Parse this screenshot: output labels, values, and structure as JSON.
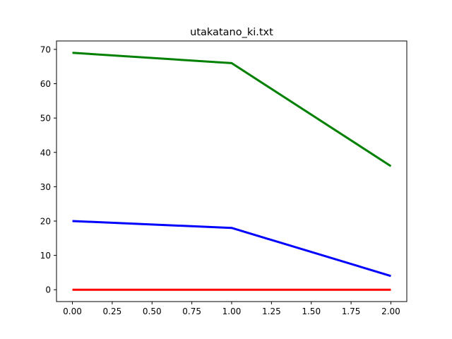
{
  "chart_data": {
    "type": "line",
    "title": "utakatano_ki.txt",
    "xlabel": "",
    "ylabel": "",
    "x": [
      0,
      1,
      2
    ],
    "xlim": [
      -0.1,
      2.1
    ],
    "ylim": [
      -3.45,
      72.45
    ],
    "xticks": [
      0.0,
      0.25,
      0.5,
      0.75,
      1.0,
      1.25,
      1.5,
      1.75,
      2.0
    ],
    "xtick_labels": [
      "0.00",
      "0.25",
      "0.50",
      "0.75",
      "1.00",
      "1.25",
      "1.50",
      "1.75",
      "2.00"
    ],
    "yticks": [
      0,
      10,
      20,
      30,
      40,
      50,
      60,
      70
    ],
    "ytick_labels": [
      "0",
      "10",
      "20",
      "30",
      "40",
      "50",
      "60",
      "70"
    ],
    "grid": false,
    "series": [
      {
        "color": "#008000",
        "values": [
          69,
          66,
          36
        ]
      },
      {
        "color": "#0000ff",
        "values": [
          20,
          18,
          4
        ]
      },
      {
        "color": "#ff0000",
        "values": [
          0,
          0,
          0
        ]
      }
    ]
  }
}
